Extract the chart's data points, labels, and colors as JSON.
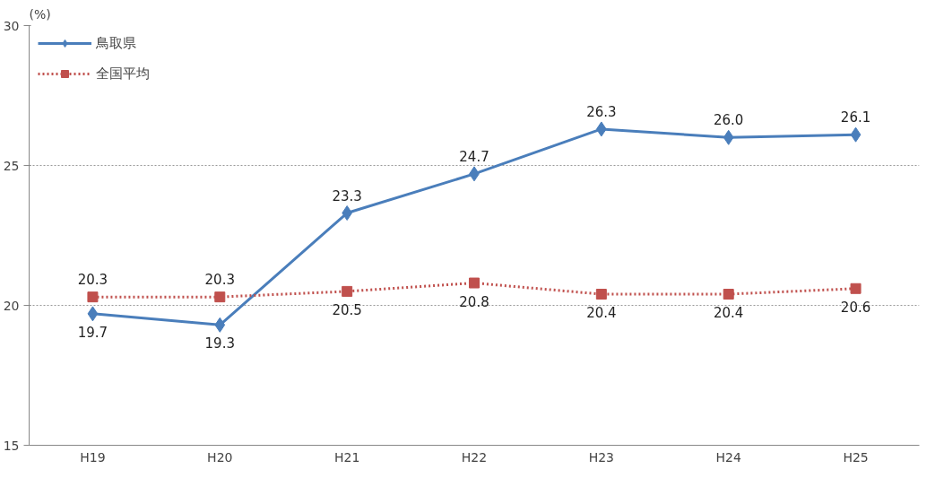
{
  "chart_data": {
    "type": "line",
    "ylabel": "(%)",
    "categories": [
      "H19",
      "H20",
      "H21",
      "H22",
      "H23",
      "H24",
      "H25"
    ],
    "series": [
      {
        "name": "鳥取県",
        "color": "#4a7ebb",
        "marker": "diamond",
        "line_style": "solid",
        "values": [
          19.7,
          19.3,
          23.3,
          24.7,
          26.3,
          26.0,
          26.1
        ],
        "value_labels": [
          "19.7",
          "19.3",
          "23.3",
          "24.7",
          "26.3",
          "26.0",
          "26.1"
        ]
      },
      {
        "name": "全国平均",
        "color": "#c0504d",
        "marker": "square",
        "line_style": "dotted",
        "values": [
          20.3,
          20.3,
          20.5,
          20.8,
          20.4,
          20.4,
          20.6
        ],
        "value_labels": [
          "20.3",
          "20.3",
          "20.5",
          "20.8",
          "20.4",
          "20.4",
          "20.6"
        ]
      }
    ],
    "ylim": [
      15,
      30
    ],
    "yticks": [
      15,
      20,
      25,
      30
    ],
    "grid": "y",
    "legend": "top left"
  }
}
